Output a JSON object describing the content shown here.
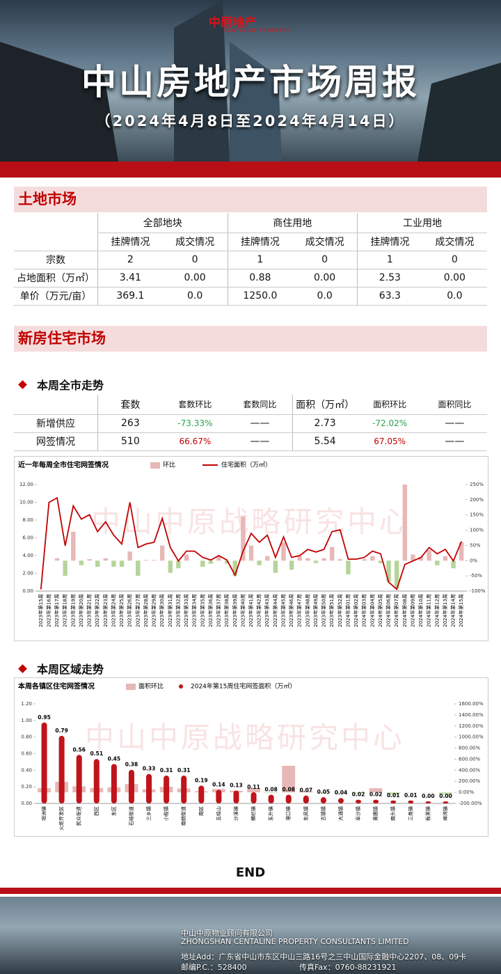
{
  "header": {
    "logo": "中原地产",
    "logo_en": "CENTALINE PROPERTY",
    "title": "中山房地产市场周报",
    "subtitle": "（2024年4月8日至2024年4月14日）"
  },
  "land": {
    "title": "土地市场",
    "groups": [
      "全部地块",
      "商住用地",
      "工业用地"
    ],
    "columns": [
      "挂牌情况",
      "成交情况",
      "挂牌情况",
      "成交情况",
      "挂牌情况",
      "成交情况"
    ],
    "rows": [
      [
        "宗数",
        "2",
        "0",
        "1",
        "0",
        "1",
        "0"
      ],
      [
        "占地面积（万㎡）",
        "3.41",
        "0.00",
        "0.88",
        "0.00",
        "2.53",
        "0.00"
      ],
      [
        "单价（万元/亩）",
        "369.1",
        "0.0",
        "1250.0",
        "0.0",
        "63.3",
        "0.0"
      ]
    ]
  },
  "newhouse": {
    "title": "新房住宅市场",
    "subtitle": "本周全市走势",
    "columns": [
      "套数",
      "套数环比",
      "套数同比",
      "面积（万㎡）",
      "面积环比",
      "面积同比"
    ],
    "rows": [
      [
        "新增供应",
        "263",
        "-73.33%",
        "——",
        "2.73",
        "-72.02%",
        "——"
      ],
      [
        "网签情况",
        "510",
        "66.67%",
        "——",
        "5.54",
        "67.05%",
        "——"
      ]
    ]
  },
  "region": {
    "subtitle": "本周区域走势"
  },
  "watermark": "中山中原战略研究中心",
  "chart_data": [
    {
      "type": "bar_line",
      "title": "近一年每周全市住宅网签情况",
      "categories": [
        "2023年第15周",
        "2023年第16周",
        "2023年第17周",
        "2023年第18周",
        "2023年第19周",
        "2023年第20周",
        "2023年第21周",
        "2023年第22周",
        "2023年第23周",
        "2023年第24周",
        "2023年第25周",
        "2023年第26周",
        "2023年第27周",
        "2023年第28周",
        "2023年第29周",
        "2023年第30周",
        "2023年第31周",
        "2023年第32周",
        "2023年第33周",
        "2023年第34周",
        "2023年第35周",
        "2023年第36周",
        "2023年第37周",
        "2023年第38周",
        "2023年第39周",
        "2023年第40周",
        "2023年第41周",
        "2023年第42周",
        "2023年第43周",
        "2023年第44周",
        "2023年第45周",
        "2023年第46周",
        "2023年第47周",
        "2023年第48周",
        "2023年第49周",
        "2023年第50周",
        "2023年第51周",
        "2023年第52周",
        "2024年第01周",
        "2024年第02周",
        "2024年第03周",
        "2024年第04周",
        "2024年第05周",
        "2024年第06周",
        "2024年第07周",
        "2024年第08周",
        "2024年第09周",
        "2024年第10周",
        "2024年第11周",
        "2024年第12周",
        "2024年第13周",
        "2024年第14周",
        "2024年第15周"
      ],
      "series": [
        {
          "name": "环比",
          "type": "bar",
          "axis": "y2",
          "color": "#e6b8b7",
          "negative_color": "#b6d49a",
          "values": [
            0,
            0,
            8,
            -50,
            95,
            -15,
            5,
            -20,
            8,
            -20,
            -20,
            30,
            -50,
            2,
            2,
            50,
            -40,
            -25,
            20,
            0,
            -20,
            -10,
            15,
            -10,
            -50,
            145,
            50,
            -15,
            15,
            -40,
            60,
            -30,
            15,
            8,
            -8,
            8,
            45,
            5,
            -45,
            0,
            5,
            15,
            -8,
            -70,
            -90,
            250,
            20,
            12,
            35,
            -15,
            15,
            -25,
            60
          ]
        },
        {
          "name": "住宅面积（万㎡）",
          "type": "line",
          "color": "#c00000",
          "values": [
            0.2,
            10.0,
            10.5,
            5.1,
            9.6,
            8.1,
            8.6,
            6.7,
            7.8,
            6.3,
            5.3,
            10.0,
            4.9,
            5.3,
            5.5,
            8.2,
            4.9,
            3.4,
            4.5,
            4.5,
            3.8,
            3.5,
            4.0,
            3.5,
            1.8,
            4.5,
            6.5,
            5.5,
            6.3,
            3.8,
            6.1,
            3.8,
            4.0,
            4.7,
            4.4,
            4.7,
            6.7,
            6.9,
            3.6,
            3.6,
            3.8,
            4.5,
            4.2,
            1.0,
            0.2,
            3.0,
            3.4,
            3.8,
            4.9,
            4.2,
            4.7,
            3.4,
            5.6
          ]
        }
      ],
      "ylim": [
        0,
        12
      ],
      "yticks": [
        {
          "value": 0,
          "label": "0.00"
        },
        {
          "value": 2,
          "label": "2.00"
        },
        {
          "value": 4,
          "label": "4.00"
        },
        {
          "value": 6,
          "label": "6.00"
        },
        {
          "value": 8,
          "label": "8.00"
        },
        {
          "value": 10,
          "label": "10.00"
        },
        {
          "value": 12,
          "label": "12.00"
        }
      ],
      "y2lim": [
        -100,
        250
      ],
      "y2ticks": [
        {
          "value": -100,
          "label": "-100%"
        },
        {
          "value": -50,
          "label": "-50%"
        },
        {
          "value": 0,
          "label": "0%"
        },
        {
          "value": 50,
          "label": "50%"
        },
        {
          "value": 100,
          "label": "100%"
        },
        {
          "value": 150,
          "label": "150%"
        },
        {
          "value": 200,
          "label": "200%"
        },
        {
          "value": 250,
          "label": "250%"
        }
      ]
    },
    {
      "type": "bar_column",
      "title": "本周各镇区住宅网签情况",
      "categories": [
        "坦洲镇",
        "火炬开发区",
        "民众街道",
        "西区",
        "东区",
        "石岐街道",
        "三乡镇",
        "小榄镇",
        "南朗街道",
        "南区",
        "五桂山",
        "沙溪镇",
        "横栏镇",
        "东升镇",
        "港口镇",
        "东凤镇",
        "古镇镇",
        "大涌镇",
        "阜沙镇",
        "黄圃镇",
        "南头镇",
        "三角镇",
        "板芙镇",
        "神湾镇"
      ],
      "series": [
        {
          "name": "面积环比",
          "type": "bar",
          "axis": "y2",
          "color": "#e6b8b7",
          "negative_color": "#c6dfae",
          "values": [
            75,
            190,
            110,
            80,
            90,
            150,
            55,
            100,
            70,
            20,
            60,
            30,
            70,
            -10,
            480,
            20,
            -10,
            -5,
            -15,
            75,
            -40,
            -5,
            -5,
            -40
          ]
        },
        {
          "name": "2024年第15周住宅网签面积（万㎡）",
          "type": "column",
          "color": "#c0141b",
          "values": [
            0.95,
            0.79,
            0.56,
            0.51,
            0.45,
            0.38,
            0.33,
            0.31,
            0.31,
            0.19,
            0.14,
            0.13,
            0.11,
            0.08,
            0.08,
            0.07,
            0.05,
            0.04,
            0.02,
            0.02,
            0.01,
            0.01,
            0,
            0
          ],
          "value_labels": [
            "0.95",
            "0.79",
            "0.56",
            "0.51",
            "0.45",
            "0.38",
            "0.33",
            "0.31",
            "0.31",
            "0.19",
            "0.14",
            "0.13",
            "0.11",
            "0.08",
            "0.08",
            "0.07",
            "0.05",
            "0.04",
            "0.02",
            "0.02",
            "0.01",
            "0.01",
            "0.00",
            "0.00"
          ]
        }
      ],
      "ylim": [
        0,
        1.2
      ],
      "yticks": [
        {
          "value": 0,
          "label": "0.00"
        },
        {
          "value": 0.2,
          "label": "0.20"
        },
        {
          "value": 0.4,
          "label": "0.40"
        },
        {
          "value": 0.6,
          "label": "0.60"
        },
        {
          "value": 0.8,
          "label": "0.80"
        },
        {
          "value": 1,
          "label": "1.00"
        },
        {
          "value": 1.2,
          "label": "1.20"
        }
      ],
      "y2lim": [
        -200,
        1600
      ],
      "y2ticks": [
        {
          "value": -200,
          "label": "-200.00%"
        },
        {
          "value": 0,
          "label": "0.00%"
        },
        {
          "value": 200,
          "label": "200.00%"
        },
        {
          "value": 400,
          "label": "400.00%"
        },
        {
          "value": 600,
          "label": "600.00%"
        },
        {
          "value": 800,
          "label": "800.00%"
        },
        {
          "value": 1000,
          "label": "1000.00%"
        },
        {
          "value": 1200,
          "label": "1200.00%"
        },
        {
          "value": 1400,
          "label": "1400.00%"
        },
        {
          "value": 1600,
          "label": "1600.00%"
        }
      ]
    }
  ],
  "end": "END",
  "footer": {
    "company": "中山中原物业顾问有限公司",
    "company_en": "ZHONGSHAN CENTALINE PROPERTY CONSULTANTS LIMITED",
    "address": "地址Add：广东省中山市东区中山三路16号之三中山国际金融中心2207、08、09卡",
    "postcode": "邮编P.C.：528400",
    "fax": "传真Fax：0760-88231921"
  }
}
